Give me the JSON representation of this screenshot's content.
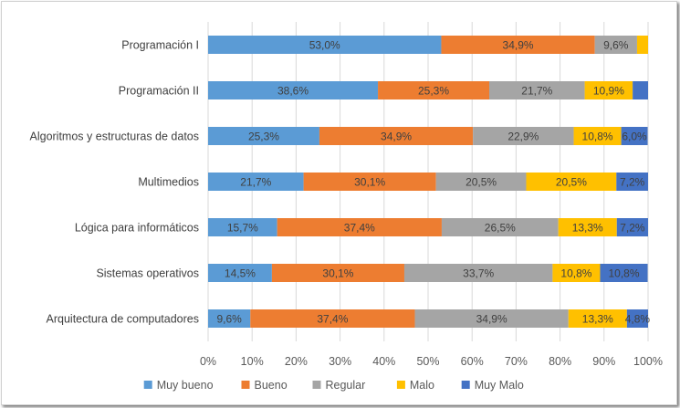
{
  "chart_data": {
    "type": "bar",
    "orientation": "horizontal",
    "stacked": "percent",
    "categories": [
      "Programación I",
      "Programación II",
      "Algoritmos y estructuras de datos",
      "Multimedios",
      "Lógica para informáticos",
      "Sistemas operativos",
      "Arquitectura de computadores"
    ],
    "series": [
      {
        "name": "Muy bueno",
        "color": "#5B9BD5",
        "values": [
          53.0,
          38.6,
          25.3,
          21.7,
          15.7,
          14.5,
          9.6
        ],
        "labels": [
          "53,0%",
          "38,6%",
          "25,3%",
          "21,7%",
          "15,7%",
          "14,5%",
          "9,6%"
        ]
      },
      {
        "name": "Bueno",
        "color": "#ED7D31",
        "values": [
          34.9,
          25.3,
          34.9,
          30.1,
          37.4,
          30.1,
          37.4
        ],
        "labels": [
          "34,9%",
          "25,3%",
          "34,9%",
          "30,1%",
          "37,4%",
          "30,1%",
          "37,4%"
        ]
      },
      {
        "name": "Regular",
        "color": "#A5A5A5",
        "values": [
          9.6,
          21.7,
          22.9,
          20.5,
          26.5,
          33.7,
          34.9
        ],
        "labels": [
          "9,6%",
          "21,7%",
          "22,9%",
          "20,5%",
          "26,5%",
          "33,7%",
          "34,9%"
        ]
      },
      {
        "name": "Malo",
        "color": "#FFC000",
        "values": [
          2.5,
          10.9,
          10.8,
          20.5,
          13.3,
          10.8,
          13.3
        ],
        "labels": [
          "",
          "10,9%",
          "10,8%",
          "20,5%",
          "13,3%",
          "10,8%",
          "13,3%"
        ]
      },
      {
        "name": "Muy Malo",
        "color": "#4472C4",
        "values": [
          0,
          3.5,
          6.0,
          7.2,
          7.2,
          10.8,
          4.8
        ],
        "labels": [
          "",
          "",
          "6,0%",
          "7,2%",
          "7,2%",
          "10,8%",
          "4,8%"
        ]
      }
    ],
    "xlim": [
      0,
      100
    ],
    "x_ticks": [
      "0%",
      "10%",
      "20%",
      "30%",
      "40%",
      "50%",
      "60%",
      "70%",
      "80%",
      "90%",
      "100%"
    ],
    "grid": true,
    "legend_position": "bottom"
  }
}
